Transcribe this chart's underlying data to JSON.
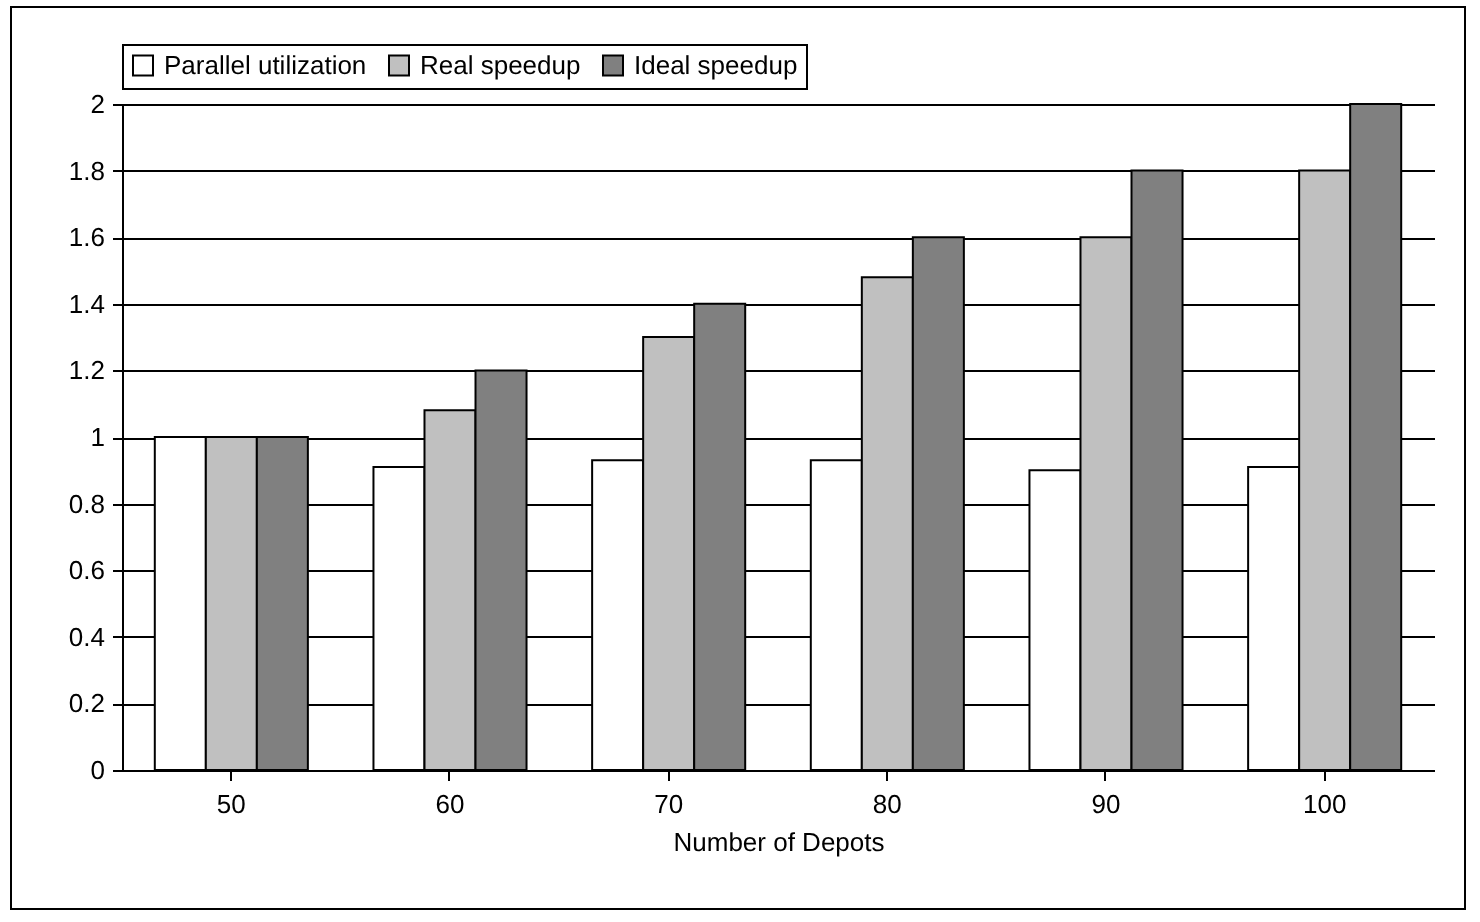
{
  "chart_data": {
    "type": "bar",
    "xlabel": "Number of Depots",
    "categories": [
      "50",
      "60",
      "70",
      "80",
      "90",
      "100"
    ],
    "series": [
      {
        "name": "Parallel utilization",
        "color": "#ffffff",
        "values": [
          1,
          0.91,
          0.93,
          0.93,
          0.9,
          0.91
        ]
      },
      {
        "name": "Real speedup",
        "color": "#c0c0c0",
        "values": [
          1,
          1.08,
          1.3,
          1.48,
          1.6,
          1.8
        ]
      },
      {
        "name": "Ideal speedup",
        "color": "#808080",
        "values": [
          1,
          1.2,
          1.4,
          1.6,
          1.8,
          2
        ]
      }
    ],
    "ylim": [
      0,
      2
    ],
    "yticks": [
      0,
      0.2,
      0.4,
      0.6,
      0.8,
      1,
      1.2,
      1.4,
      1.6,
      1.8,
      2
    ],
    "grid": "y",
    "legend": "top"
  }
}
